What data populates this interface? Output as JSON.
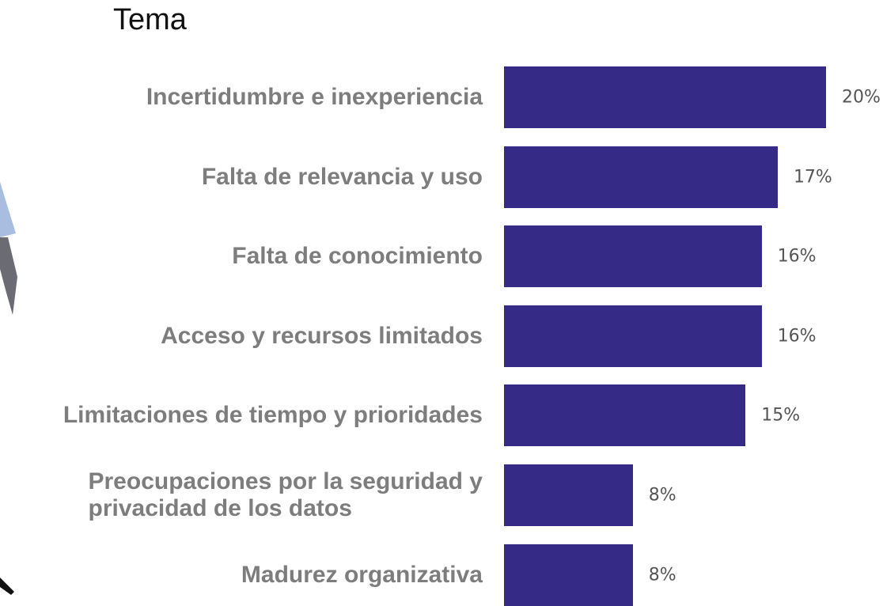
{
  "chart_data": {
    "type": "bar",
    "orientation": "horizontal",
    "title": "Tema",
    "categories": [
      "Incertidumbre e inexperiencia",
      "Falta de relevancia y uso",
      "Falta de conocimiento",
      "Acceso y recursos limitados",
      "Limitaciones de tiempo y prioridades",
      "Preocupaciones por la seguridad y\nprivacidad de los datos",
      "Madurez organizativa"
    ],
    "values": [
      20,
      17,
      16,
      16,
      15,
      8,
      8
    ],
    "value_labels": [
      "20%",
      "17%",
      "16%",
      "16%",
      "15%",
      "8%",
      "8%"
    ],
    "color": "#352a85"
  }
}
